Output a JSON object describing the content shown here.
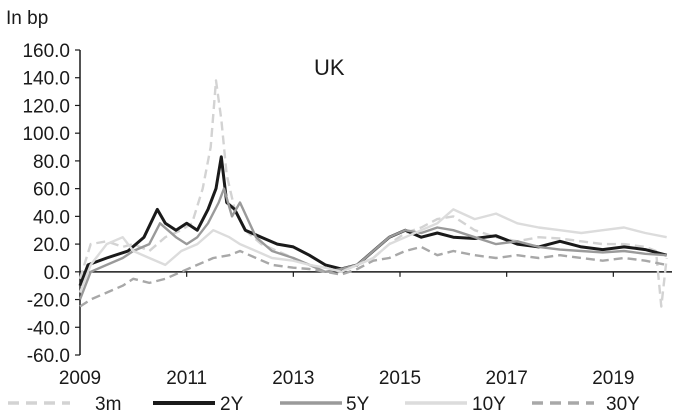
{
  "chart_data": {
    "type": "line",
    "title": "UK",
    "ylabel": "In bp",
    "xlabel": "",
    "ylim": [
      -60,
      160
    ],
    "xlim": [
      2009,
      2020.1
    ],
    "yticks": [
      "160.0",
      "140.0",
      "120.0",
      "100.0",
      "80.0",
      "60.0",
      "40.0",
      "20.0",
      "0.0",
      "-20.0",
      "-40.0",
      "-60.0"
    ],
    "yticks_values": [
      160,
      140,
      120,
      100,
      80,
      60,
      40,
      20,
      0,
      -20,
      -40,
      -60
    ],
    "xticks": [
      "2009",
      "2011",
      "2013",
      "2015",
      "2017",
      "2019"
    ],
    "xticks_values": [
      2009,
      2011,
      2013,
      2015,
      2017,
      2019
    ],
    "grid": false,
    "legend_position": "bottom",
    "series": [
      {
        "name": "3m",
        "color": "#d3d3d3",
        "dash": "dashed",
        "x": [
          2009.0,
          2009.2,
          2009.5,
          2009.8,
          2010.0,
          2010.3,
          2010.6,
          2010.9,
          2011.1,
          2011.3,
          2011.45,
          2011.55,
          2011.65,
          2011.75,
          2011.9,
          2012.1,
          2012.4,
          2012.7,
          2013.0,
          2013.3,
          2013.6,
          2013.9,
          2014.2,
          2014.5,
          2014.8,
          2015.1,
          2015.4,
          2015.7,
          2016.0,
          2016.4,
          2016.8,
          2017.2,
          2017.6,
          2018.0,
          2018.4,
          2018.8,
          2019.2,
          2019.6,
          2019.8,
          2019.9,
          2020.0
        ],
        "values": [
          -5,
          20,
          22,
          18,
          20,
          15,
          25,
          30,
          35,
          60,
          90,
          138,
          110,
          70,
          45,
          30,
          20,
          15,
          10,
          5,
          3,
          2,
          5,
          10,
          20,
          28,
          32,
          38,
          40,
          30,
          25,
          22,
          25,
          24,
          22,
          20,
          20,
          18,
          15,
          -25,
          10
        ]
      },
      {
        "name": "2Y",
        "color": "#1a1a1a",
        "dash": "solid",
        "x": [
          2009.0,
          2009.15,
          2009.5,
          2009.9,
          2010.2,
          2010.45,
          2010.6,
          2010.8,
          2011.0,
          2011.2,
          2011.4,
          2011.55,
          2011.65,
          2011.75,
          2011.9,
          2012.1,
          2012.4,
          2012.7,
          2013.0,
          2013.3,
          2013.6,
          2013.9,
          2014.2,
          2014.5,
          2014.8,
          2015.1,
          2015.4,
          2015.7,
          2016.0,
          2016.4,
          2016.8,
          2017.2,
          2017.6,
          2018.0,
          2018.4,
          2018.8,
          2019.2,
          2019.6,
          2020.0
        ],
        "values": [
          -10,
          5,
          10,
          15,
          25,
          45,
          35,
          30,
          35,
          30,
          45,
          60,
          83,
          50,
          45,
          30,
          25,
          20,
          18,
          12,
          5,
          2,
          5,
          15,
          25,
          30,
          25,
          28,
          25,
          24,
          26,
          20,
          18,
          22,
          18,
          16,
          18,
          16,
          12
        ]
      },
      {
        "name": "5Y",
        "color": "#9a9a9a",
        "dash": "solid",
        "x": [
          2009.0,
          2009.2,
          2009.5,
          2009.8,
          2010.0,
          2010.3,
          2010.5,
          2010.8,
          2011.0,
          2011.2,
          2011.4,
          2011.6,
          2011.7,
          2011.85,
          2012.0,
          2012.3,
          2012.6,
          2013.0,
          2013.3,
          2013.6,
          2013.9,
          2014.2,
          2014.5,
          2014.8,
          2015.1,
          2015.4,
          2015.7,
          2016.0,
          2016.4,
          2016.8,
          2017.2,
          2017.6,
          2018.0,
          2018.4,
          2018.8,
          2019.2,
          2019.6,
          2020.0
        ],
        "values": [
          -20,
          0,
          5,
          10,
          15,
          20,
          35,
          25,
          20,
          25,
          35,
          50,
          60,
          40,
          50,
          25,
          15,
          10,
          5,
          0,
          2,
          5,
          15,
          25,
          30,
          28,
          32,
          30,
          25,
          20,
          22,
          18,
          16,
          15,
          14,
          15,
          13,
          12
        ]
      },
      {
        "name": "10Y",
        "color": "#dcdcdc",
        "dash": "solid",
        "x": [
          2009.0,
          2009.2,
          2009.5,
          2009.8,
          2010.0,
          2010.3,
          2010.6,
          2010.9,
          2011.2,
          2011.5,
          2011.8,
          2012.0,
          2012.3,
          2012.6,
          2013.0,
          2013.3,
          2013.6,
          2013.9,
          2014.2,
          2014.5,
          2014.8,
          2015.1,
          2015.4,
          2015.7,
          2016.0,
          2016.4,
          2016.8,
          2017.2,
          2017.6,
          2018.0,
          2018.4,
          2018.8,
          2019.2,
          2019.6,
          2020.0
        ],
        "values": [
          -15,
          5,
          20,
          25,
          15,
          10,
          5,
          15,
          20,
          30,
          25,
          20,
          15,
          10,
          8,
          5,
          3,
          0,
          5,
          10,
          20,
          25,
          30,
          35,
          45,
          38,
          42,
          35,
          32,
          30,
          28,
          30,
          32,
          28,
          25
        ]
      },
      {
        "name": "30Y",
        "color": "#a8a8a8",
        "dash": "dashed",
        "x": [
          2009.0,
          2009.2,
          2009.5,
          2009.8,
          2010.0,
          2010.3,
          2010.6,
          2010.9,
          2011.2,
          2011.5,
          2011.8,
          2012.0,
          2012.3,
          2012.6,
          2013.0,
          2013.3,
          2013.6,
          2013.9,
          2014.2,
          2014.5,
          2014.8,
          2015.1,
          2015.4,
          2015.7,
          2016.0,
          2016.4,
          2016.8,
          2017.2,
          2017.6,
          2018.0,
          2018.4,
          2018.8,
          2019.2,
          2019.6,
          2020.0
        ],
        "values": [
          -25,
          -20,
          -15,
          -10,
          -5,
          -8,
          -5,
          0,
          5,
          10,
          12,
          15,
          10,
          5,
          3,
          2,
          0,
          -2,
          2,
          8,
          10,
          15,
          18,
          12,
          15,
          12,
          10,
          12,
          10,
          12,
          10,
          8,
          10,
          8,
          5
        ]
      }
    ]
  }
}
